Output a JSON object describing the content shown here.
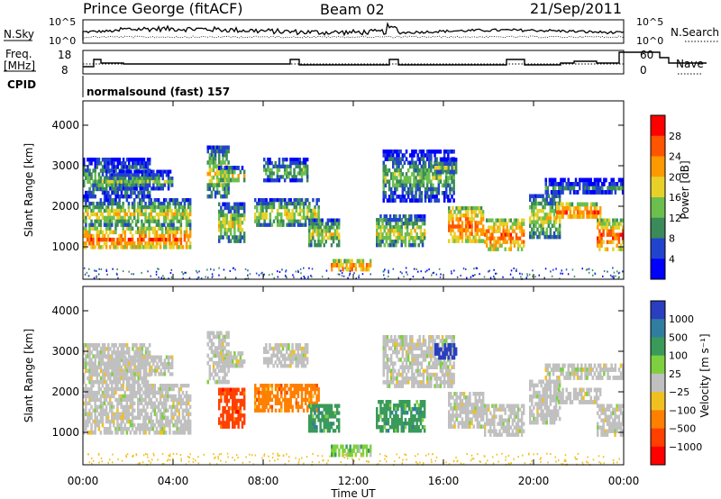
{
  "header": {
    "station": "Prince George (fitACF)",
    "beam": "Beam 02",
    "date": "21/Sep/2011"
  },
  "top_panels": {
    "nsky_label": "N.Sky",
    "nsky_ticks": [
      "10^5",
      "10^0"
    ],
    "nsearch_label": "N.Search",
    "nsearch_ticks": [
      "10^5",
      "10^0"
    ],
    "freq_label_1": "Freq.",
    "freq_label_2": "[MHz]",
    "freq_ticks": [
      "18",
      "8"
    ],
    "nave_label": "Nave",
    "nave_ticks": [
      "60",
      "0"
    ],
    "cpid_label": "CPID",
    "cpid_text": "normalsound (fast) 157"
  },
  "chart_data": [
    {
      "type": "heatmap",
      "name": "power",
      "ylabel": "Slant Range [km]",
      "yticks": [
        "1000",
        "2000",
        "3000",
        "4000"
      ],
      "ylim": [
        200,
        4600
      ],
      "colorbar_label": "Power [dB]",
      "colorbar_ticks": [
        "4",
        "8",
        "12",
        "16",
        "20",
        "24",
        "28"
      ],
      "colors": [
        "#0000ff",
        "#2244cc",
        "#3b8a5a",
        "#6cbf4e",
        "#e8d02a",
        "#ff9900",
        "#ff5500",
        "#ff0000"
      ]
    },
    {
      "type": "heatmap",
      "name": "velocity",
      "ylabel": "Slant Range [km]",
      "yticks": [
        "1000",
        "2000",
        "3000",
        "4000"
      ],
      "ylim": [
        200,
        4600
      ],
      "colorbar_label": "Velocity [m s⁻¹]",
      "colorbar_ticks": [
        "1000",
        "500",
        "100",
        "25",
        "−25",
        "−100",
        "−500",
        "−1000"
      ],
      "colors": [
        "#2a3fbf",
        "#2f7ea0",
        "#3a9a5a",
        "#7fd040",
        "#c0c0c0",
        "#f0c020",
        "#ff8000",
        "#ff4000",
        "#ff0000"
      ]
    }
  ],
  "xaxis": {
    "label": "Time UT",
    "ticks": [
      "00:00",
      "04:00",
      "08:00",
      "12:00",
      "16:00",
      "20:00",
      "00:00"
    ]
  }
}
